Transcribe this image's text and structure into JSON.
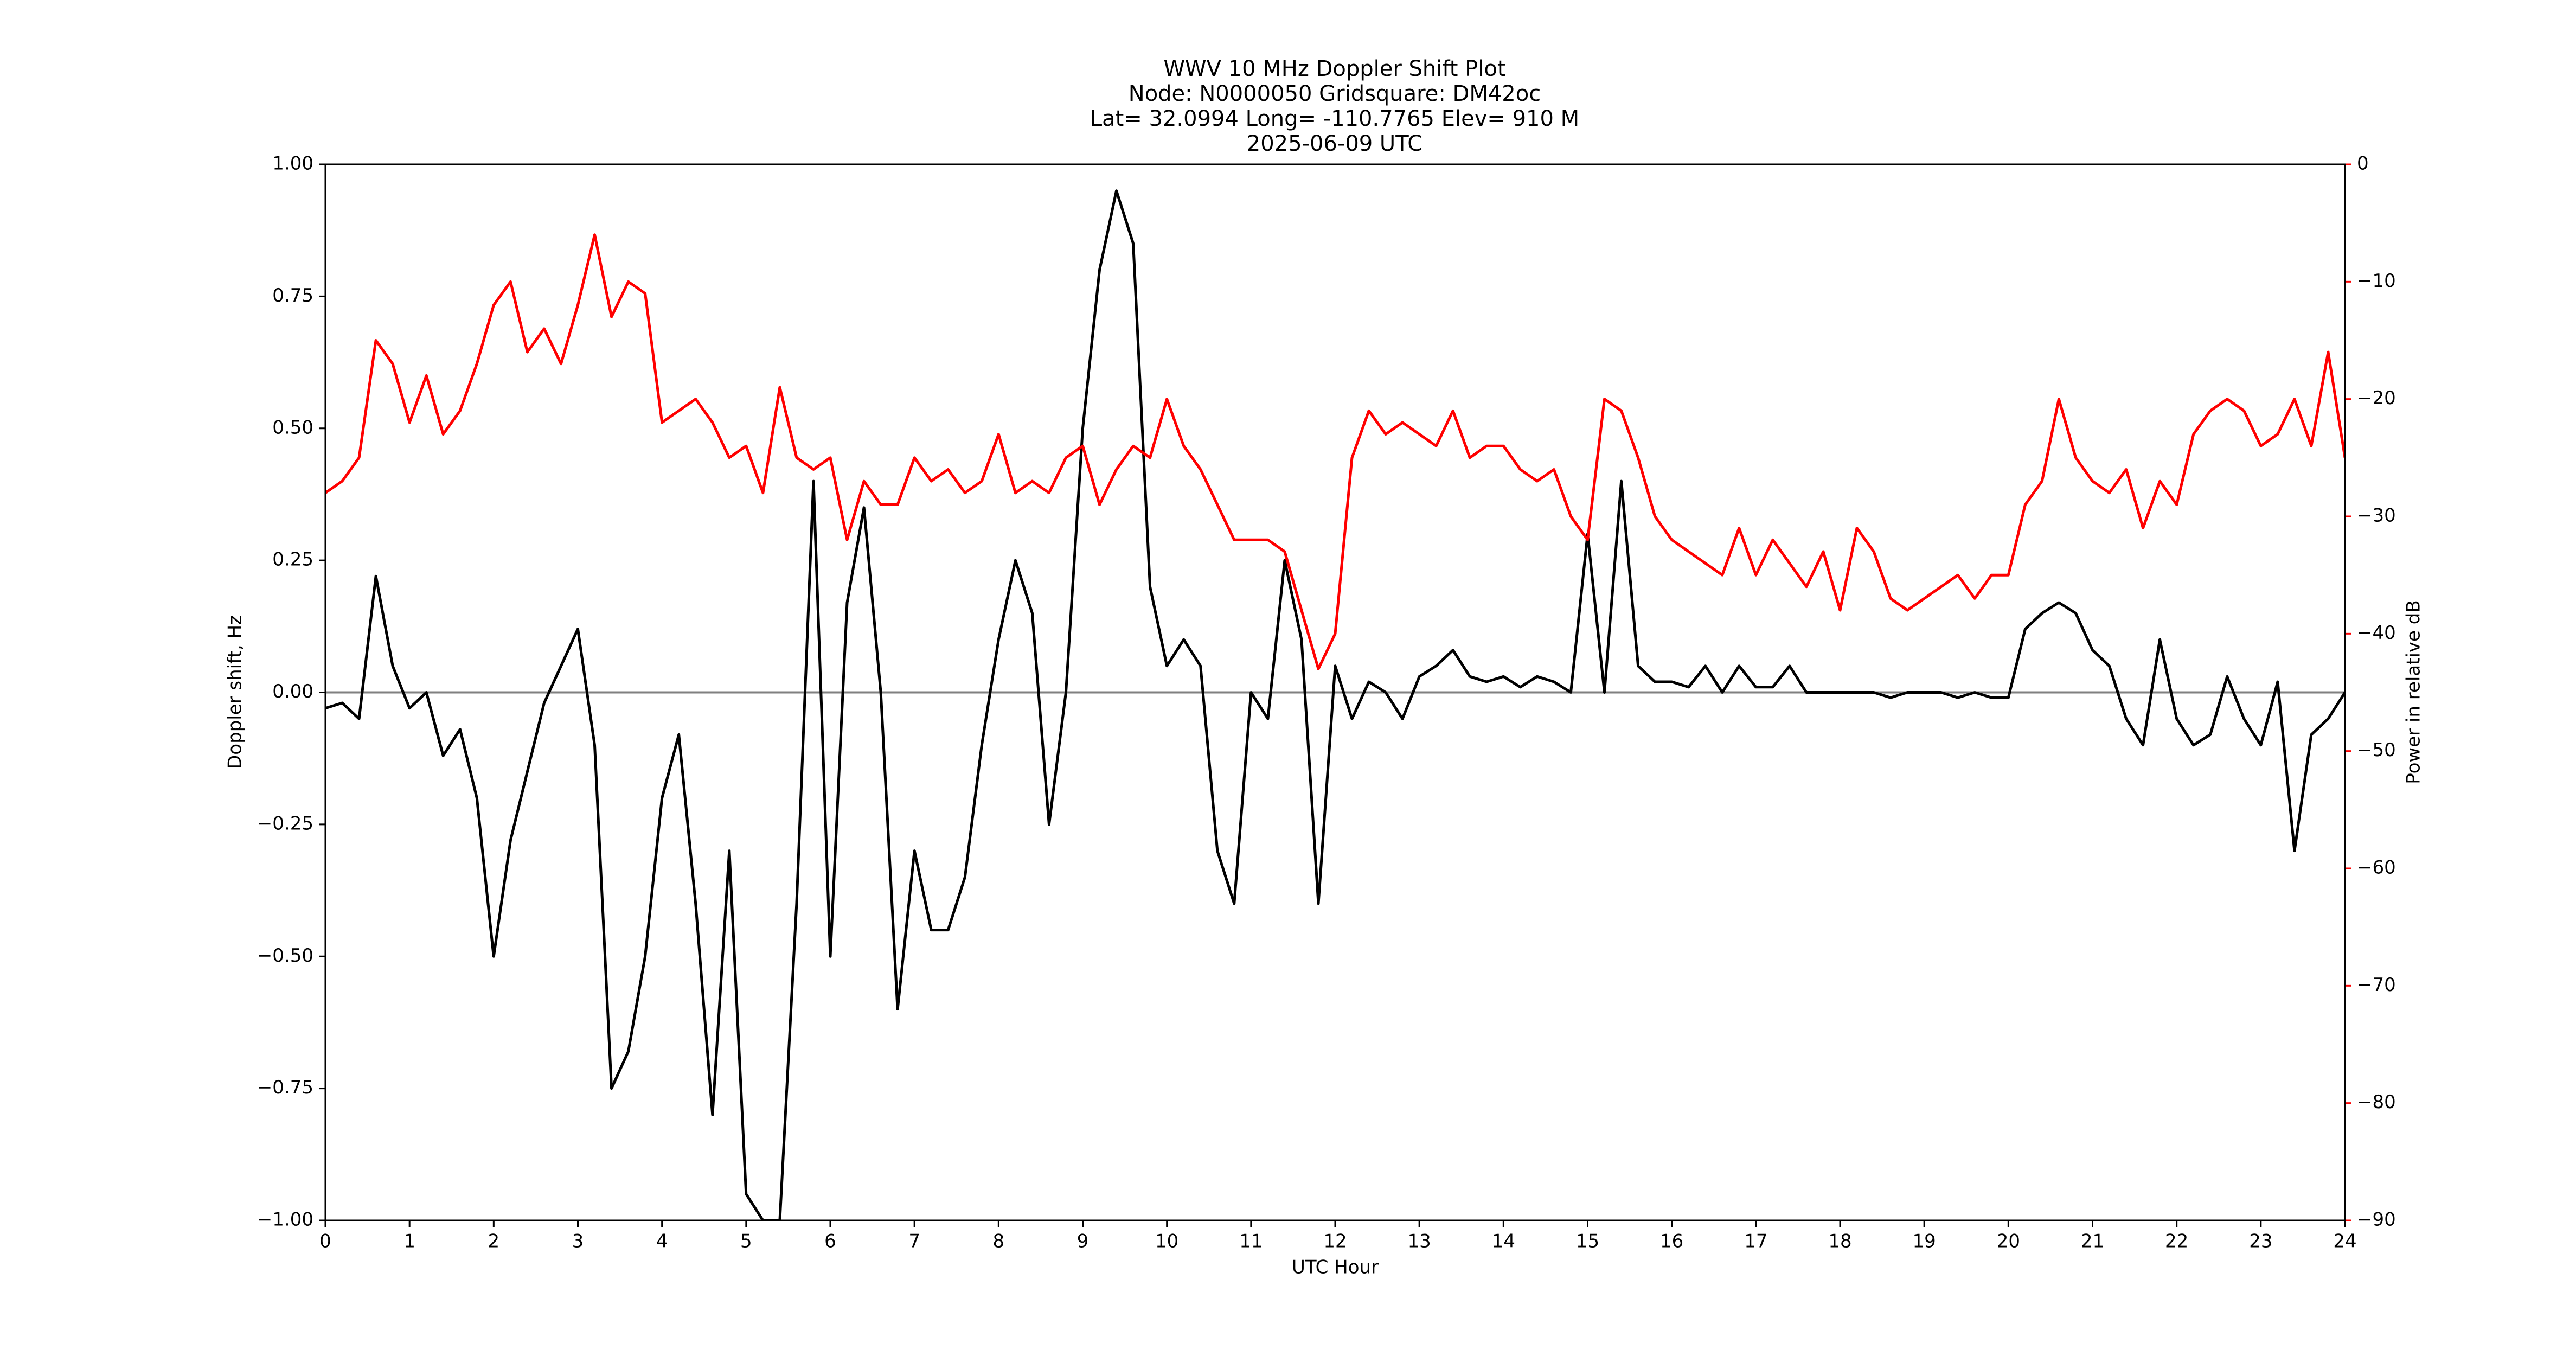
{
  "chart_data": {
    "type": "line",
    "title_lines": [
      "WWV 10 MHz Doppler Shift Plot",
      "Node:  N0000050     Gridsquare:  DM42oc",
      "Lat= 32.0994    Long= -110.7765    Elev= 910 M",
      "2025-06-09  UTC"
    ],
    "xlabel": "UTC Hour",
    "ylabel": "Doppler shift, Hz",
    "y2label": "Power in relative dB",
    "y2color": "#ff0000",
    "xlim": [
      0,
      24
    ],
    "xticks": [
      0,
      1,
      2,
      3,
      4,
      5,
      6,
      7,
      8,
      9,
      10,
      11,
      12,
      13,
      14,
      15,
      16,
      17,
      18,
      19,
      20,
      21,
      22,
      23,
      24
    ],
    "ylim": [
      -1,
      1
    ],
    "yticks": [
      {
        "value": -1,
        "label": "−1.00"
      },
      {
        "value": -0.75,
        "label": "−0.75"
      },
      {
        "value": -0.5,
        "label": "−0.50"
      },
      {
        "value": -0.25,
        "label": "−0.25"
      },
      {
        "value": 0,
        "label": "0.00"
      },
      {
        "value": 0.25,
        "label": "0.25"
      },
      {
        "value": 0.5,
        "label": "0.50"
      },
      {
        "value": 0.75,
        "label": "0.75"
      },
      {
        "value": 1,
        "label": "1.00"
      }
    ],
    "y2lim": [
      -90,
      0
    ],
    "y2ticks": [
      {
        "value": -90,
        "label": "−90"
      },
      {
        "value": -80,
        "label": "−80"
      },
      {
        "value": -70,
        "label": "−70"
      },
      {
        "value": -60,
        "label": "−60"
      },
      {
        "value": -50,
        "label": "−50"
      },
      {
        "value": -40,
        "label": "−40"
      },
      {
        "value": -30,
        "label": "−30"
      },
      {
        "value": -20,
        "label": "−20"
      },
      {
        "value": -10,
        "label": "−10"
      },
      0
    ],
    "reference_line": 0,
    "reference_color": "#808080",
    "x": [
      0,
      0.2,
      0.4,
      0.6,
      0.8,
      1,
      1.2,
      1.4,
      1.6,
      1.8,
      2,
      2.2,
      2.4,
      2.6,
      2.8,
      3,
      3.2,
      3.4,
      3.6,
      3.8,
      4,
      4.2,
      4.4,
      4.6,
      4.8,
      5,
      5.2,
      5.4,
      5.6,
      5.8,
      6,
      6.2,
      6.4,
      6.6,
      6.8,
      7,
      7.2,
      7.4,
      7.6,
      7.8,
      8,
      8.2,
      8.4,
      8.6,
      8.8,
      9,
      9.2,
      9.4,
      9.6,
      9.8,
      10,
      10.2,
      10.4,
      10.6,
      10.8,
      11,
      11.2,
      11.4,
      11.6,
      11.8,
      12,
      12.2,
      12.4,
      12.6,
      12.8,
      13,
      13.2,
      13.4,
      13.6,
      13.8,
      14,
      14.2,
      14.4,
      14.6,
      14.8,
      15,
      15.2,
      15.4,
      15.6,
      15.8,
      16,
      16.2,
      16.4,
      16.6,
      16.8,
      17,
      17.2,
      17.4,
      17.6,
      17.8,
      18,
      18.2,
      18.4,
      18.6,
      18.8,
      19,
      19.2,
      19.4,
      19.6,
      19.8,
      20,
      20.2,
      20.4,
      20.6,
      20.8,
      21,
      21.2,
      21.4,
      21.6,
      21.8,
      22,
      22.2,
      22.4,
      22.6,
      22.8,
      23,
      23.2,
      23.4,
      23.6,
      23.8,
      24
    ],
    "series": [
      {
        "color": "#000000",
        "axis": "y",
        "values": [
          -0.03,
          -0.02,
          -0.05,
          0.22,
          0.05,
          -0.03,
          0,
          -0.12,
          -0.07,
          -0.2,
          -0.5,
          -0.28,
          -0.15,
          -0.02,
          0.05,
          0.12,
          -0.1,
          -0.75,
          -0.68,
          -0.5,
          -0.2,
          -0.08,
          -0.4,
          -0.8,
          -0.3,
          -0.95,
          -1,
          -1,
          -0.4,
          0.4,
          -0.5,
          0.17,
          0.35,
          0,
          -0.6,
          -0.3,
          -0.45,
          -0.45,
          -0.35,
          -0.1,
          0.1,
          0.25,
          0.15,
          -0.25,
          0,
          0.5,
          0.8,
          0.95,
          0.85,
          0.2,
          0.05,
          0.1,
          0.05,
          -0.3,
          -0.4,
          0,
          -0.05,
          0.25,
          0.1,
          -0.4,
          0.05,
          -0.05,
          0.02,
          0,
          -0.05,
          0.03,
          0.05,
          0.08,
          0.03,
          0.02,
          0.03,
          0.01,
          0.03,
          0.02,
          0,
          0.3,
          0,
          0.4,
          0.05,
          0.02,
          0.02,
          0.01,
          0.05,
          0,
          0.05,
          0.01,
          0.01,
          0.05,
          0,
          0,
          0,
          0,
          0,
          -0.01,
          0,
          0,
          0,
          -0.01,
          0,
          -0.01,
          -0.01,
          0.12,
          0.15,
          0.17,
          0.15,
          0.08,
          0.05,
          -0.05,
          -0.1,
          0.1,
          -0.05,
          -0.1,
          -0.08,
          0.03,
          -0.05,
          -0.1,
          0.02,
          -0.3,
          -0.08,
          -0.05,
          0
        ]
      },
      {
        "color": "#ff0000",
        "axis": "y2",
        "values": [
          -28,
          -27,
          -25,
          -15,
          -17,
          -22,
          -18,
          -23,
          -21,
          -17,
          -12,
          -10,
          -16,
          -14,
          -17,
          -12,
          -6,
          -13,
          -10,
          -11,
          -22,
          -21,
          -20,
          -22,
          -25,
          -24,
          -28,
          -19,
          -25,
          -26,
          -25,
          -32,
          -27,
          -29,
          -29,
          -25,
          -27,
          -26,
          -28,
          -27,
          -23,
          -28,
          -27,
          -28,
          -25,
          -24,
          -29,
          -26,
          -24,
          -25,
          -20,
          -24,
          -26,
          -29,
          -32,
          -32,
          -32,
          -33,
          -38,
          -43,
          -40,
          -25,
          -21,
          -23,
          -22,
          -23,
          -24,
          -21,
          -25,
          -24,
          -24,
          -26,
          -27,
          -26,
          -30,
          -32,
          -20,
          -21,
          -25,
          -30,
          -32,
          -33,
          -34,
          -35,
          -31,
          -35,
          -32,
          -34,
          -36,
          -33,
          -38,
          -31,
          -33,
          -37,
          -38,
          -37,
          -36,
          -35,
          -37,
          -35,
          -35,
          -29,
          -27,
          -20,
          -25,
          -27,
          -28,
          -26,
          -31,
          -27,
          -29,
          -23,
          -21,
          -20,
          -21,
          -24,
          -23,
          -20,
          -24,
          -16,
          -25
        ]
      }
    ]
  }
}
